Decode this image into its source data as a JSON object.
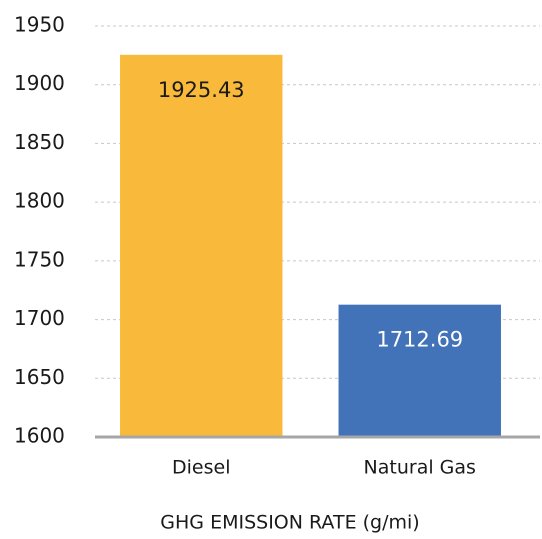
{
  "chart_data": {
    "type": "bar",
    "x_label": "GHG EMISSION RATE (g/mi)",
    "categories": [
      "Diesel",
      "Natural Gas"
    ],
    "values": [
      1925.43,
      1712.69
    ],
    "colors": [
      "#f9b93a",
      "#4272b8"
    ],
    "value_label_colors": [
      "#1a1a1a",
      "#ffffff"
    ],
    "ylim": [
      1600,
      1950
    ],
    "yticks": [
      1600,
      1650,
      1700,
      1750,
      1800,
      1850,
      1900,
      1950
    ],
    "grid": true
  }
}
